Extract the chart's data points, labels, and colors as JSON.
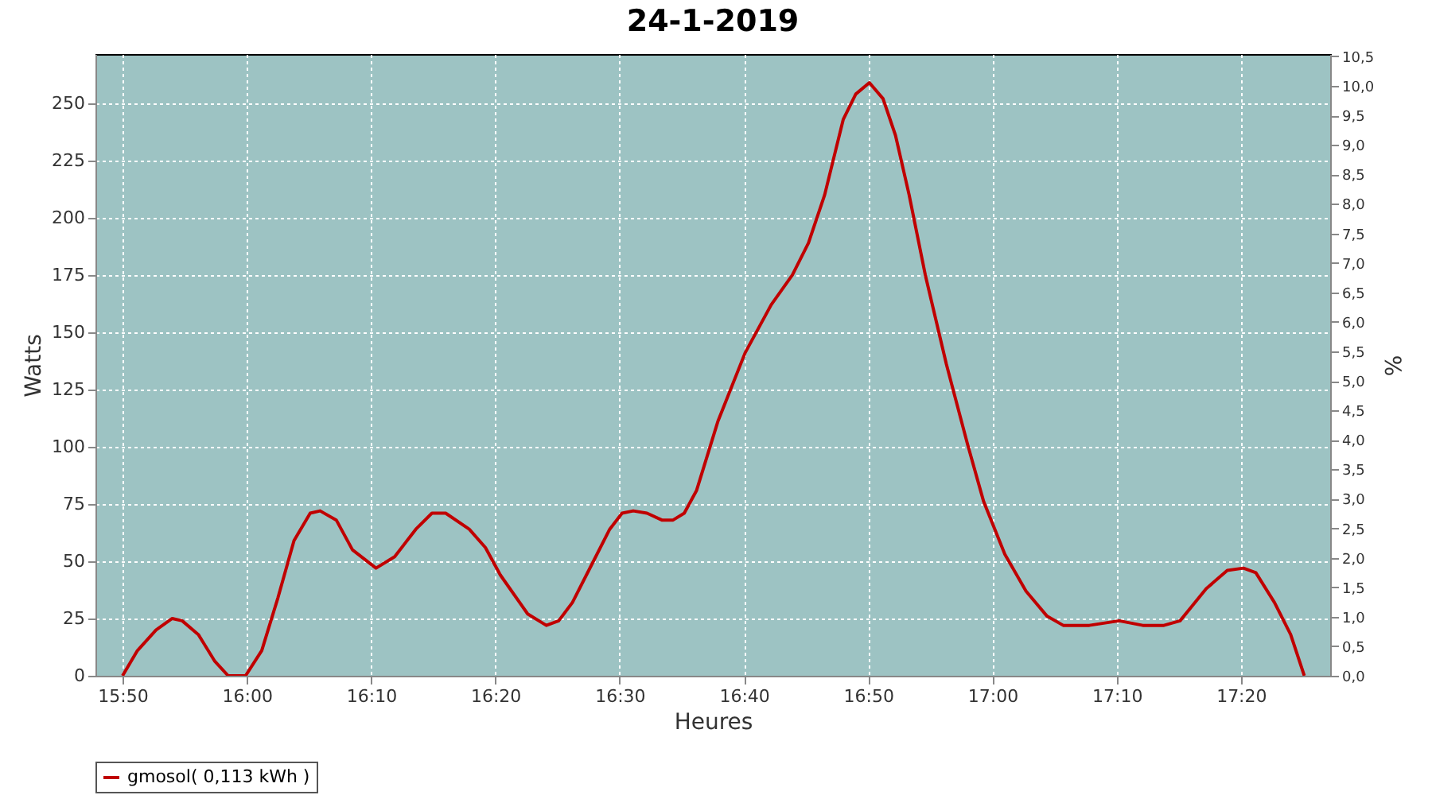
{
  "chart_data": {
    "type": "line",
    "title": "24-1-2019",
    "xlabel": "Heures",
    "ylabel": "Watts",
    "y2label": "%",
    "x": [
      15.8333,
      15.8533,
      15.8783,
      15.9,
      15.9133,
      15.935,
      15.9567,
      15.975,
      15.9983,
      16.02,
      16.0417,
      16.0633,
      16.085,
      16.0983,
      16.12,
      16.1417,
      16.1733,
      16.1983,
      16.2267,
      16.2483,
      16.2667,
      16.2983,
      16.32,
      16.34,
      16.3767,
      16.4017,
      16.4183,
      16.4367,
      16.4617,
      16.4867,
      16.5033,
      16.5183,
      16.5367,
      16.5567,
      16.5717,
      16.5867,
      16.6033,
      16.6317,
      16.6683,
      16.7033,
      16.7317,
      16.7533,
      16.775,
      16.8,
      16.8167,
      16.835,
      16.8533,
      16.87,
      16.8883,
      16.91,
      16.9383,
      16.9667,
      16.9883,
      17.0167,
      17.045,
      17.0733,
      17.095,
      17.13,
      17.17,
      17.2017,
      17.23,
      17.2517,
      17.2867,
      17.315,
      17.3367,
      17.3533,
      17.3783,
      17.4,
      17.4183
    ],
    "series": [
      {
        "name": "gmosol( 0,113 kWh )",
        "color": "#c00000",
        "values": [
          0,
          11,
          20,
          25,
          24,
          18,
          6.5,
          0,
          0,
          11,
          34,
          59,
          71,
          72,
          68,
          55,
          47,
          52,
          64,
          71,
          71,
          64,
          56,
          44,
          27,
          22,
          24,
          32,
          48,
          64,
          71,
          72,
          71,
          68,
          68,
          71,
          81,
          111,
          141,
          162,
          175,
          189,
          210,
          243,
          254,
          259,
          252,
          236,
          210,
          175,
          136,
          101,
          76,
          53,
          37,
          26,
          22,
          22,
          24,
          22,
          22,
          24,
          38,
          46,
          47,
          45,
          32,
          18,
          0
        ]
      }
    ],
    "xlim": [
      15.797,
      17.453
    ],
    "xticks": [
      {
        "value": 15.8333,
        "label": "15:50"
      },
      {
        "value": 16,
        "label": "16:00"
      },
      {
        "value": 16.1667,
        "label": "16:10"
      },
      {
        "value": 16.3333,
        "label": "16:20"
      },
      {
        "value": 16.5,
        "label": "16:30"
      },
      {
        "value": 16.6667,
        "label": "16:40"
      },
      {
        "value": 16.8333,
        "label": "16:50"
      },
      {
        "value": 17,
        "label": "17:00"
      },
      {
        "value": 17.1667,
        "label": "17:10"
      },
      {
        "value": 17.3333,
        "label": "17:20"
      }
    ],
    "ylim": [
      0,
      271.5
    ],
    "yticks": [
      0,
      25,
      50,
      75,
      100,
      125,
      150,
      175,
      200,
      225,
      250
    ],
    "y2lim": [
      0,
      10.54
    ],
    "y2ticks": [
      {
        "value": 0,
        "label": "0,0"
      },
      {
        "value": 0.5,
        "label": "0,5"
      },
      {
        "value": 1,
        "label": "1,0"
      },
      {
        "value": 1.5,
        "label": "1,5"
      },
      {
        "value": 2,
        "label": "2,0"
      },
      {
        "value": 2.5,
        "label": "2,5"
      },
      {
        "value": 3,
        "label": "3,0"
      },
      {
        "value": 3.5,
        "label": "3,5"
      },
      {
        "value": 4,
        "label": "4,0"
      },
      {
        "value": 4.5,
        "label": "4,5"
      },
      {
        "value": 5,
        "label": "5,0"
      },
      {
        "value": 5.5,
        "label": "5,5"
      },
      {
        "value": 6,
        "label": "6,0"
      },
      {
        "value": 6.5,
        "label": "6,5"
      },
      {
        "value": 7,
        "label": "7,0"
      },
      {
        "value": 7.5,
        "label": "7,5"
      },
      {
        "value": 8,
        "label": "8,0"
      },
      {
        "value": 8.5,
        "label": "8,5"
      },
      {
        "value": 9,
        "label": "9,0"
      },
      {
        "value": 9.5,
        "label": "9,5"
      },
      {
        "value": 10,
        "label": "10,0"
      },
      {
        "value": 10.5,
        "label": "10,5"
      }
    ],
    "grid": true,
    "legend": "bottom",
    "line_style": "solid",
    "marker": "none"
  }
}
